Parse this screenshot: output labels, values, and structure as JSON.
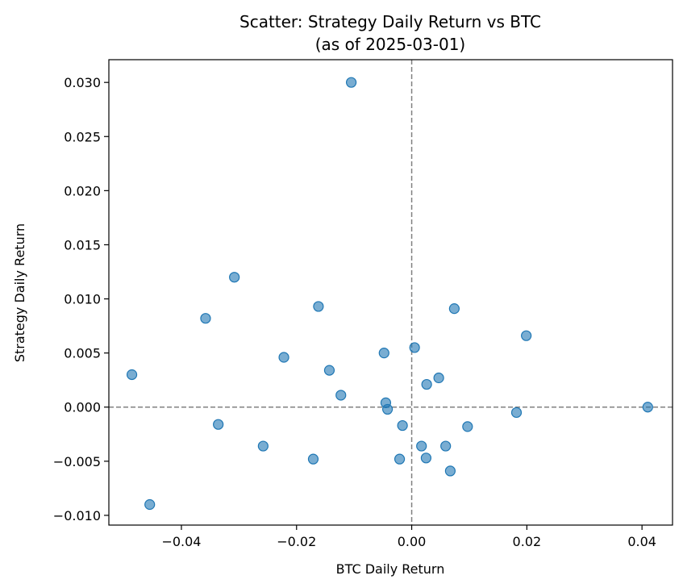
{
  "chart_data": {
    "type": "scatter",
    "title": "Scatter: Strategy Daily Return vs BTC",
    "subtitle": "(as of 2025-03-01)",
    "xlabel": "BTC Daily Return",
    "ylabel": "Strategy Daily Return",
    "xlim": [
      -0.0526,
      0.0453
    ],
    "ylim": [
      -0.0109,
      0.0321
    ],
    "xticks": [
      -0.04,
      -0.02,
      0.0,
      0.02,
      0.04
    ],
    "xtick_labels": [
      "−0.04",
      "−0.02",
      "0.00",
      "0.02",
      "0.04"
    ],
    "yticks": [
      -0.01,
      -0.005,
      0.0,
      0.005,
      0.01,
      0.015,
      0.02,
      0.025,
      0.03
    ],
    "ytick_labels": [
      "−0.010",
      "−0.005",
      "0.000",
      "0.005",
      "0.010",
      "0.015",
      "0.020",
      "0.025",
      "0.030"
    ],
    "reference_lines": {
      "x": 0.0,
      "y": 0.0,
      "style": "dashed",
      "color": "#808080"
    },
    "grid": false,
    "point_color": "#1f77b4",
    "point_alpha": 0.6,
    "points": [
      {
        "x": -0.0105,
        "y": 0.03
      },
      {
        "x": -0.0308,
        "y": 0.012
      },
      {
        "x": -0.0162,
        "y": 0.0093
      },
      {
        "x": -0.0358,
        "y": 0.0082
      },
      {
        "x": 0.0074,
        "y": 0.0091
      },
      {
        "x": 0.0199,
        "y": 0.0066
      },
      {
        "x": 0.0005,
        "y": 0.0055
      },
      {
        "x": -0.0048,
        "y": 0.005
      },
      {
        "x": -0.0222,
        "y": 0.0046
      },
      {
        "x": -0.0143,
        "y": 0.0034
      },
      {
        "x": -0.0486,
        "y": 0.003
      },
      {
        "x": 0.0047,
        "y": 0.0027
      },
      {
        "x": 0.0026,
        "y": 0.0021
      },
      {
        "x": -0.0123,
        "y": 0.0011
      },
      {
        "x": -0.0045,
        "y": 0.0004
      },
      {
        "x": -0.0042,
        "y": -0.0002
      },
      {
        "x": 0.041,
        "y": 0.0
      },
      {
        "x": 0.0182,
        "y": -0.0005
      },
      {
        "x": -0.0336,
        "y": -0.0016
      },
      {
        "x": -0.0016,
        "y": -0.0017
      },
      {
        "x": 0.0097,
        "y": -0.0018
      },
      {
        "x": -0.0258,
        "y": -0.0036
      },
      {
        "x": 0.0017,
        "y": -0.0036
      },
      {
        "x": 0.0059,
        "y": -0.0036
      },
      {
        "x": -0.0171,
        "y": -0.0048
      },
      {
        "x": -0.0021,
        "y": -0.0048
      },
      {
        "x": 0.0025,
        "y": -0.0047
      },
      {
        "x": 0.0067,
        "y": -0.0059
      },
      {
        "x": -0.0455,
        "y": -0.009
      }
    ]
  }
}
